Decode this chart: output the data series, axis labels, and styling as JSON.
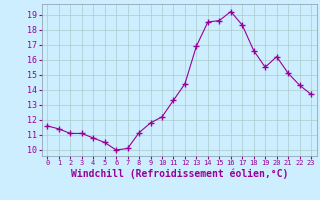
{
  "x": [
    0,
    1,
    2,
    3,
    4,
    5,
    6,
    7,
    8,
    9,
    10,
    11,
    12,
    13,
    14,
    15,
    16,
    17,
    18,
    19,
    20,
    21,
    22,
    23
  ],
  "y": [
    11.6,
    11.4,
    11.1,
    11.1,
    10.8,
    10.5,
    10.0,
    10.1,
    11.15,
    11.8,
    12.2,
    13.3,
    14.4,
    16.9,
    18.5,
    18.6,
    19.2,
    18.3,
    16.6,
    15.5,
    16.2,
    15.1,
    14.3,
    13.7
  ],
  "line_color": "#990099",
  "marker": "+",
  "marker_size": 4,
  "bg_color": "#cceeff",
  "grid_color": "#aacccc",
  "xlabel": "Windchill (Refroidissement éolien,°C)",
  "xlabel_fontsize": 7,
  "ytick_min": 10,
  "ytick_max": 19,
  "xtick_labels": [
    "0",
    "1",
    "2",
    "3",
    "4",
    "5",
    "6",
    "7",
    "8",
    "9",
    "10",
    "11",
    "12",
    "13",
    "14",
    "15",
    "16",
    "17",
    "18",
    "19",
    "20",
    "21",
    "22",
    "23"
  ],
  "ylim": [
    9.6,
    19.7
  ],
  "xlim": [
    -0.5,
    23.5
  ]
}
